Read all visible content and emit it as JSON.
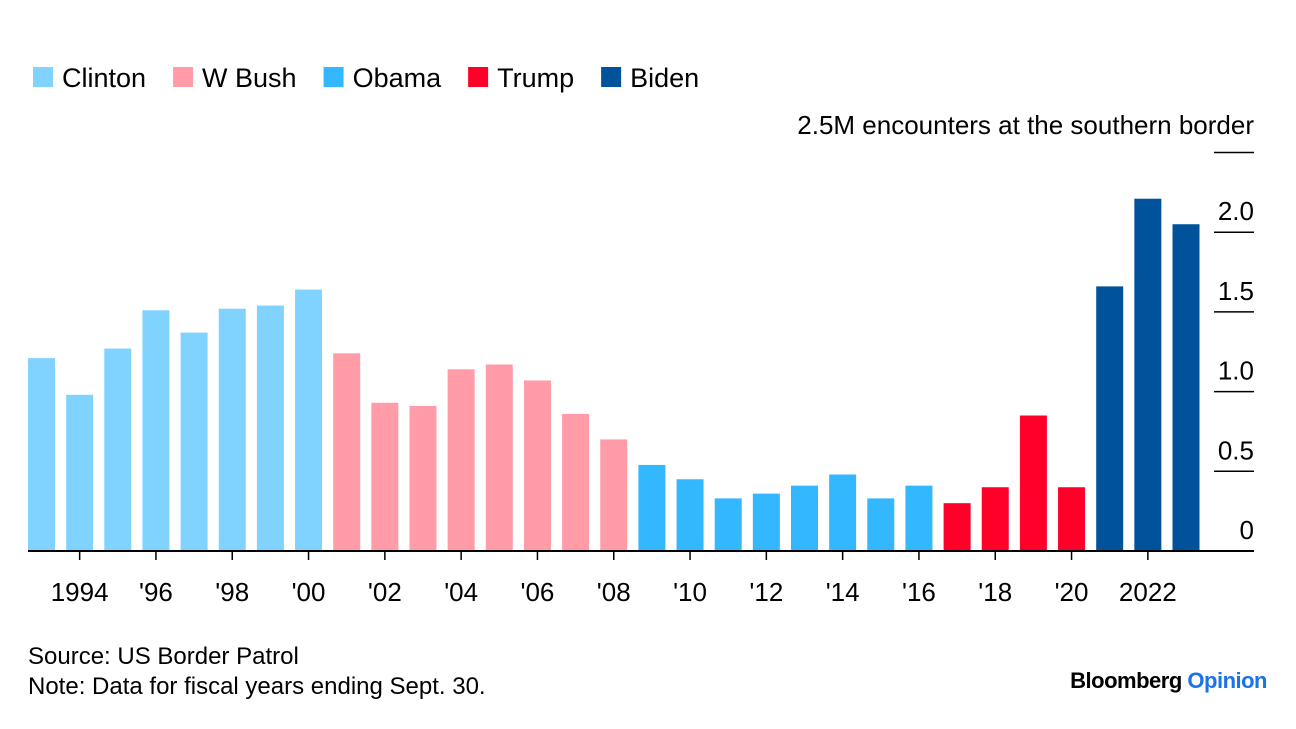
{
  "chart_data": {
    "type": "bar",
    "title": "",
    "ylabel": "2.5M encounters at the southern border",
    "xlabel": "",
    "ylim": [
      0,
      2.5
    ],
    "yticks": [
      0,
      0.5,
      1.0,
      1.5,
      2.0,
      2.5
    ],
    "ytick_labels": [
      "0",
      "0.5",
      "1.0",
      "1.5",
      "2.0",
      ""
    ],
    "grid": "horizontal, right side only",
    "legend_placement": "top-left",
    "xtick_years": [
      1994,
      1996,
      1998,
      2000,
      2002,
      2004,
      2006,
      2008,
      2010,
      2012,
      2014,
      2016,
      2018,
      2020,
      2022
    ],
    "xtick_labels": [
      "1994",
      "'96",
      "'98",
      "'00",
      "'02",
      "'04",
      "'06",
      "'08",
      "'10",
      "'12",
      "'14",
      "'16",
      "'18",
      "'20",
      "2022"
    ],
    "legend": [
      {
        "name": "Clinton",
        "color": "#80d3ff"
      },
      {
        "name": "W Bush",
        "color": "#ff9ca8"
      },
      {
        "name": "Obama",
        "color": "#33b7ff"
      },
      {
        "name": "Trump",
        "color": "#ff0028"
      },
      {
        "name": "Biden",
        "color": "#00529b"
      }
    ],
    "categories": [
      1993,
      1994,
      1995,
      1996,
      1997,
      1998,
      1999,
      2000,
      2001,
      2002,
      2003,
      2004,
      2005,
      2006,
      2007,
      2008,
      2009,
      2010,
      2011,
      2012,
      2013,
      2014,
      2015,
      2016,
      2017,
      2018,
      2019,
      2020,
      2021,
      2022,
      2023
    ],
    "values": [
      1.21,
      0.98,
      1.27,
      1.51,
      1.37,
      1.52,
      1.54,
      1.64,
      1.24,
      0.93,
      0.91,
      1.14,
      1.17,
      1.07,
      0.86,
      0.7,
      0.54,
      0.45,
      0.33,
      0.36,
      0.41,
      0.48,
      0.33,
      0.41,
      0.3,
      0.4,
      0.85,
      0.4,
      1.66,
      2.21,
      2.05
    ],
    "president": [
      "Clinton",
      "Clinton",
      "Clinton",
      "Clinton",
      "Clinton",
      "Clinton",
      "Clinton",
      "Clinton",
      "W Bush",
      "W Bush",
      "W Bush",
      "W Bush",
      "W Bush",
      "W Bush",
      "W Bush",
      "W Bush",
      "Obama",
      "Obama",
      "Obama",
      "Obama",
      "Obama",
      "Obama",
      "Obama",
      "Obama",
      "Trump",
      "Trump",
      "Trump",
      "Trump",
      "Biden",
      "Biden",
      "Biden"
    ]
  },
  "footer": {
    "source": "Source: US Border Patrol",
    "note": "Note: Data for fiscal years ending Sept. 30.",
    "brand_main": "Bloomberg",
    "brand_sub": "Opinion",
    "brand_sub_color": "#1a73e8"
  }
}
